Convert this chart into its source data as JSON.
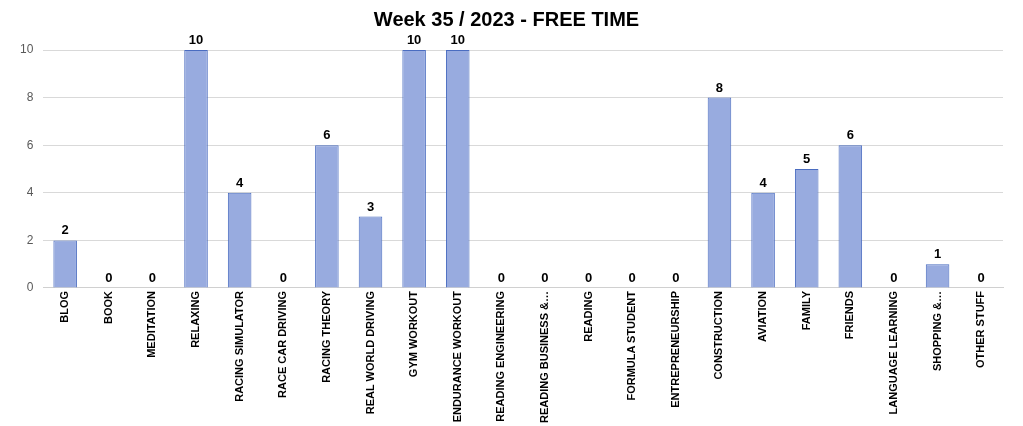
{
  "chart_data": {
    "type": "bar",
    "title": "Week 35 / 2023 - FREE TIME",
    "categories": [
      "BLOG",
      "BOOK",
      "MEDITATION",
      "RELAXING",
      "RACING SIMULATOR",
      "RACE CAR DRIVING",
      "RACING THEORY",
      "REAL WORLD DRIVING",
      "GYM WORKOUT",
      "ENDURANCE WORKOUT",
      "READING ENGINEERING",
      "READING BUSINESS &…",
      "READING",
      "FORMULA STUDENT",
      "ENTREPRENEURSHIP",
      "CONSTRUCTION",
      "AVIATION",
      "FAMILY",
      "FRIENDS",
      "LANGUAGE LEARNING",
      "SHOPPING &…",
      "OTHER STUFF"
    ],
    "values": [
      2,
      0,
      0,
      10,
      4,
      0,
      6,
      3,
      10,
      10,
      0,
      0,
      0,
      0,
      0,
      8,
      4,
      5,
      6,
      0,
      1,
      0
    ],
    "color": "#98abdf",
    "ylim": [
      0,
      10
    ],
    "yticks": [
      0,
      2,
      4,
      6,
      8,
      10
    ],
    "grid": "y",
    "data_labels": true
  }
}
